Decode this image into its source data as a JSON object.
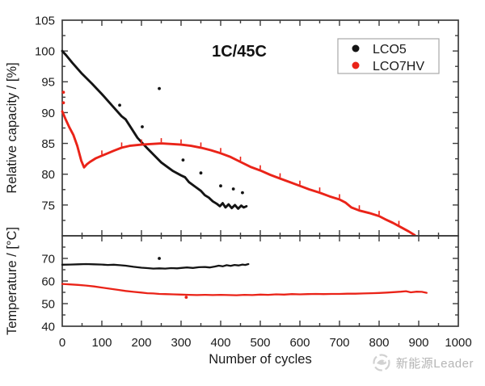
{
  "figure": {
    "background": "#ffffff",
    "frame_color": "#3c3c3c",
    "tick_label_color": "#1a1a1a"
  },
  "watermark": {
    "icon": "bird-logo-icon",
    "text": "新能源Leader",
    "color": "#b5b5b5"
  },
  "chart_data": [
    {
      "type": "line",
      "panel": "capacity",
      "title": "1C/45C",
      "ylabel": "Relative capacity / [%]",
      "ylim": [
        70,
        105
      ],
      "yticks": [
        75,
        80,
        85,
        90,
        95,
        100,
        105
      ],
      "ytick_minor_step": 2.5,
      "xlim": [
        0,
        1000
      ],
      "xtick_major_step": 100,
      "xtick_minor_step": 50,
      "grid": false,
      "x_labels_visible": false,
      "legend": {
        "position": "top-right",
        "entries": [
          {
            "label": "LCO5",
            "color": "#141414",
            "marker": "circle"
          },
          {
            "label": "LCO7HV",
            "color": "#ea2318",
            "marker": "circle"
          }
        ]
      },
      "series": [
        {
          "name": "LCO5",
          "color": "#141414",
          "points": [
            [
              0,
              100
            ],
            [
              10,
              99.3
            ],
            [
              25,
              98.1
            ],
            [
              50,
              96.3
            ],
            [
              75,
              94.7
            ],
            [
              100,
              93.0
            ],
            [
              125,
              91.2
            ],
            [
              150,
              89.4
            ],
            [
              160,
              88.9
            ],
            [
              175,
              87.4
            ],
            [
              190,
              85.9
            ],
            [
              200,
              85.2
            ],
            [
              215,
              84.2
            ],
            [
              230,
              83.2
            ],
            [
              250,
              81.9
            ],
            [
              265,
              81.2
            ],
            [
              280,
              80.5
            ],
            [
              300,
              79.8
            ],
            [
              310,
              79.5
            ],
            [
              320,
              78.7
            ],
            [
              335,
              78.0
            ],
            [
              350,
              77.3
            ],
            [
              360,
              76.6
            ],
            [
              370,
              76.2
            ],
            [
              380,
              75.6
            ],
            [
              390,
              75.2
            ],
            [
              398,
              74.8
            ],
            [
              405,
              75.3
            ],
            [
              412,
              74.6
            ],
            [
              420,
              75.1
            ],
            [
              428,
              74.5
            ],
            [
              436,
              75.0
            ],
            [
              444,
              74.4
            ],
            [
              452,
              74.9
            ],
            [
              458,
              74.6
            ],
            [
              465,
              74.8
            ]
          ],
          "outliers": [
            [
              145,
              91.2
            ],
            [
              202,
              87.7
            ],
            [
              245,
              93.9
            ],
            [
              305,
              82.3
            ],
            [
              350,
              80.2
            ],
            [
              400,
              78.1
            ],
            [
              432,
              77.6
            ],
            [
              455,
              77.0
            ]
          ]
        },
        {
          "name": "LCO7HV",
          "color": "#ea2318",
          "points": [
            [
              0,
              90.2
            ],
            [
              8,
              89.0
            ],
            [
              18,
              87.6
            ],
            [
              28,
              86.4
            ],
            [
              38,
              84.6
            ],
            [
              48,
              82.2
            ],
            [
              55,
              81.1
            ],
            [
              62,
              81.6
            ],
            [
              70,
              82.0
            ],
            [
              85,
              82.6
            ],
            [
              100,
              83.0
            ],
            [
              115,
              83.4
            ],
            [
              130,
              83.8
            ],
            [
              150,
              84.3
            ],
            [
              170,
              84.6
            ],
            [
              200,
              84.8
            ],
            [
              225,
              84.9
            ],
            [
              250,
              85.0
            ],
            [
              275,
              84.9
            ],
            [
              300,
              84.8
            ],
            [
              325,
              84.6
            ],
            [
              350,
              84.3
            ],
            [
              375,
              83.9
            ],
            [
              400,
              83.4
            ],
            [
              425,
              82.8
            ],
            [
              450,
              82.0
            ],
            [
              475,
              81.2
            ],
            [
              500,
              80.6
            ],
            [
              525,
              79.9
            ],
            [
              550,
              79.3
            ],
            [
              575,
              78.7
            ],
            [
              600,
              78.1
            ],
            [
              625,
              77.5
            ],
            [
              650,
              77.0
            ],
            [
              675,
              76.4
            ],
            [
              700,
              75.9
            ],
            [
              715,
              75.4
            ],
            [
              730,
              74.6
            ],
            [
              750,
              74.1
            ],
            [
              775,
              73.7
            ],
            [
              800,
              73.2
            ],
            [
              815,
              72.7
            ],
            [
              835,
              72.1
            ],
            [
              855,
              71.4
            ],
            [
              875,
              70.7
            ],
            [
              890,
              70.1
            ]
          ],
          "outliers": [
            [
              3,
              93.3
            ],
            [
              3,
              91.6
            ]
          ],
          "checkup_spikes": [
            100,
            150,
            200,
            250,
            300,
            350,
            400,
            450,
            500,
            550,
            600,
            650,
            700,
            750,
            800,
            850
          ]
        }
      ]
    },
    {
      "type": "line",
      "panel": "temperature",
      "ylabel": "Temperature / [°C]",
      "xlabel": "Number of cycles",
      "ylim": [
        40,
        80
      ],
      "yticks": [
        40,
        50,
        60,
        70
      ],
      "ytick_minor_step": 5,
      "xlim": [
        0,
        1000
      ],
      "xtick_major_step": 100,
      "xtick_minor_step": 50,
      "grid": false,
      "x_labels_visible": true,
      "series": [
        {
          "name": "LCO5",
          "color": "#141414",
          "points": [
            [
              0,
              67.2
            ],
            [
              20,
              67.3
            ],
            [
              40,
              67.4
            ],
            [
              60,
              67.5
            ],
            [
              80,
              67.4
            ],
            [
              100,
              67.3
            ],
            [
              115,
              67.1
            ],
            [
              130,
              67.2
            ],
            [
              145,
              67.0
            ],
            [
              160,
              66.8
            ],
            [
              180,
              66.3
            ],
            [
              200,
              65.9
            ],
            [
              215,
              65.7
            ],
            [
              230,
              65.5
            ],
            [
              245,
              65.6
            ],
            [
              260,
              65.5
            ],
            [
              275,
              65.7
            ],
            [
              290,
              65.6
            ],
            [
              300,
              65.8
            ],
            [
              315,
              66.0
            ],
            [
              330,
              65.8
            ],
            [
              345,
              66.1
            ],
            [
              360,
              66.2
            ],
            [
              372,
              66.0
            ],
            [
              385,
              66.4
            ],
            [
              395,
              66.8
            ],
            [
              405,
              66.5
            ],
            [
              415,
              67.0
            ],
            [
              425,
              66.7
            ],
            [
              435,
              67.1
            ],
            [
              445,
              66.9
            ],
            [
              455,
              67.3
            ],
            [
              462,
              67.1
            ],
            [
              470,
              67.5
            ]
          ],
          "outliers": [
            [
              245,
              70.0
            ]
          ]
        },
        {
          "name": "LCO7HV",
          "color": "#ea2318",
          "points": [
            [
              0,
              58.7
            ],
            [
              20,
              58.5
            ],
            [
              40,
              58.3
            ],
            [
              60,
              58.0
            ],
            [
              80,
              57.6
            ],
            [
              100,
              57.1
            ],
            [
              120,
              56.6
            ],
            [
              140,
              56.1
            ],
            [
              160,
              55.6
            ],
            [
              180,
              55.2
            ],
            [
              200,
              54.9
            ],
            [
              215,
              54.6
            ],
            [
              230,
              54.5
            ],
            [
              245,
              54.3
            ],
            [
              260,
              54.2
            ],
            [
              280,
              54.1
            ],
            [
              300,
              54.0
            ],
            [
              320,
              53.9
            ],
            [
              340,
              53.8
            ],
            [
              360,
              53.9
            ],
            [
              380,
              53.8
            ],
            [
              400,
              53.9
            ],
            [
              420,
              53.8
            ],
            [
              440,
              53.7
            ],
            [
              460,
              53.9
            ],
            [
              480,
              53.8
            ],
            [
              500,
              54.0
            ],
            [
              520,
              53.9
            ],
            [
              540,
              54.1
            ],
            [
              560,
              54.0
            ],
            [
              580,
              54.2
            ],
            [
              600,
              54.1
            ],
            [
              620,
              54.2
            ],
            [
              640,
              54.3
            ],
            [
              660,
              54.2
            ],
            [
              680,
              54.3
            ],
            [
              700,
              54.3
            ],
            [
              720,
              54.4
            ],
            [
              740,
              54.4
            ],
            [
              760,
              54.5
            ],
            [
              780,
              54.6
            ],
            [
              800,
              54.7
            ],
            [
              820,
              54.9
            ],
            [
              840,
              55.1
            ],
            [
              855,
              55.3
            ],
            [
              868,
              55.5
            ],
            [
              880,
              55.0
            ],
            [
              895,
              55.3
            ],
            [
              908,
              55.2
            ],
            [
              920,
              54.8
            ]
          ],
          "outliers": [
            [
              313,
              52.8
            ]
          ]
        }
      ]
    }
  ]
}
